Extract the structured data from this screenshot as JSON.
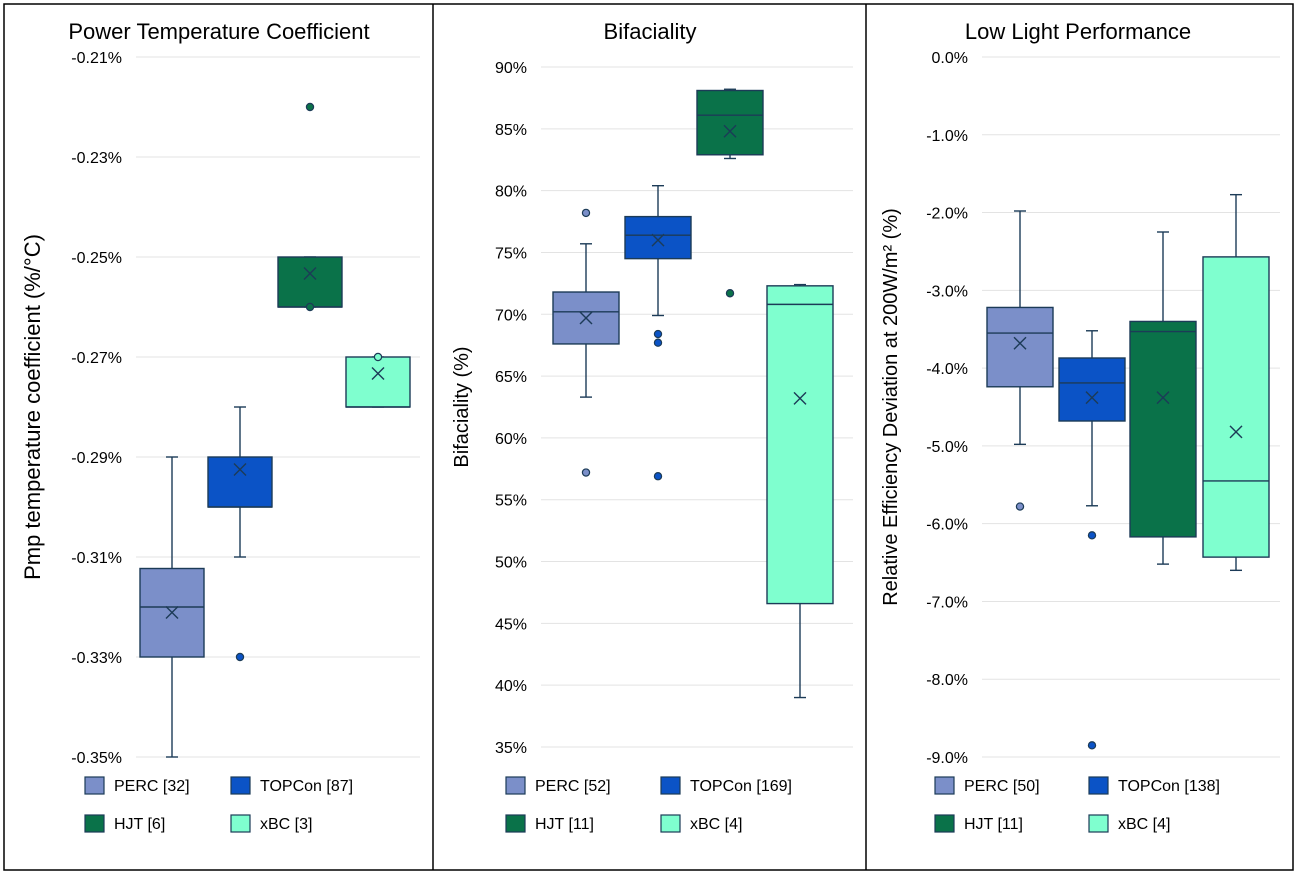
{
  "chart_data": [
    {
      "type": "box",
      "title": "Power Temperature Coefficient",
      "ylabel": "Pmp temperature coefficient (%/°C)",
      "ylim": [
        -0.35,
        -0.21
      ],
      "yticks": [
        -0.21,
        -0.23,
        -0.25,
        -0.27,
        -0.29,
        -0.31,
        -0.33,
        -0.35
      ],
      "ytick_labels": [
        "-0.21%",
        "-0.23%",
        "-0.25%",
        "-0.27%",
        "-0.29%",
        "-0.31%",
        "-0.33%",
        "-0.35%"
      ],
      "grid": true,
      "legend": "bottom",
      "series": [
        {
          "name": "PERC [32]",
          "color": "#7b8fc9",
          "box": {
            "whisker_low": -0.35,
            "q1": -0.33,
            "median": -0.32,
            "q3": -0.3123,
            "whisker_high": -0.29,
            "mean": -0.3211
          },
          "outliers": []
        },
        {
          "name": "TOPCon [87]",
          "color": "#0b53c6",
          "box": {
            "whisker_low": -0.31,
            "q1": -0.3,
            "median": -0.3,
            "q3": -0.29,
            "whisker_high": -0.28,
            "mean": -0.2925
          },
          "outliers": [
            -0.33
          ]
        },
        {
          "name": "HJT [6]",
          "color": "#0a7249",
          "box": {
            "whisker_low": -0.26,
            "q1": -0.26,
            "median": -0.26,
            "q3": -0.25,
            "whisker_high": -0.25,
            "mean": -0.2533
          },
          "outliers": [
            -0.22,
            -0.26
          ]
        },
        {
          "name": "xBC [3]",
          "color": "#7fffcf",
          "box": {
            "whisker_low": -0.28,
            "q1": -0.28,
            "median": -0.28,
            "q3": -0.27,
            "whisker_high": -0.27,
            "mean": -0.2733
          },
          "outliers": [
            -0.27
          ]
        }
      ]
    },
    {
      "type": "box",
      "title": "Bifaciality",
      "ylabel": "Bifaciality (%)",
      "ylim": [
        35,
        90
      ],
      "yticks": [
        90,
        85,
        80,
        75,
        70,
        65,
        60,
        55,
        50,
        45,
        40,
        35
      ],
      "ytick_labels": [
        "90%",
        "85%",
        "80%",
        "75%",
        "70%",
        "65%",
        "60%",
        "55%",
        "50%",
        "45%",
        "40%",
        "35%"
      ],
      "grid": true,
      "legend": "bottom",
      "series": [
        {
          "name": "PERC [52]",
          "color": "#7b8fc9",
          "box": {
            "whisker_low": 63.3,
            "q1": 67.6,
            "median": 70.2,
            "q3": 71.8,
            "whisker_high": 75.7,
            "mean": 69.7
          },
          "outliers": [
            78.2,
            57.2
          ]
        },
        {
          "name": "TOPCon [169]",
          "color": "#0b53c6",
          "box": {
            "whisker_low": 69.9,
            "q1": 74.5,
            "median": 76.4,
            "q3": 77.9,
            "whisker_high": 80.4,
            "mean": 76.0
          },
          "outliers": [
            68.4,
            67.7,
            56.9
          ]
        },
        {
          "name": "HJT [11]",
          "color": "#0a7249",
          "box": {
            "whisker_low": 82.6,
            "q1": 82.9,
            "median": 86.1,
            "q3": 88.1,
            "whisker_high": 88.2,
            "mean": 84.8
          },
          "outliers": [
            71.7
          ]
        },
        {
          "name": "xBC [4]",
          "color": "#7fffcf",
          "box": {
            "whisker_low": 39.0,
            "q1": 46.6,
            "median": 70.8,
            "q3": 72.3,
            "whisker_high": 72.4,
            "mean": 63.2
          },
          "outliers": []
        }
      ]
    },
    {
      "type": "box",
      "title": "Low Light Performance",
      "ylabel": "Relative Efficiency Deviation at 200W/m² (%)",
      "ylim": [
        -9.0,
        0.0
      ],
      "yticks": [
        0,
        -1,
        -2,
        -3,
        -4,
        -5,
        -6,
        -7,
        -8,
        -9
      ],
      "ytick_labels": [
        "0.0%",
        "-1.0%",
        "-2.0%",
        "-3.0%",
        "-4.0%",
        "-5.0%",
        "-6.0%",
        "-7.0%",
        "-8.0%",
        "-9.0%"
      ],
      "grid": true,
      "legend": "bottom",
      "series": [
        {
          "name": "PERC [50]",
          "color": "#7b8fc9",
          "box": {
            "whisker_low": -4.98,
            "q1": -4.24,
            "median": -3.55,
            "q3": -3.22,
            "whisker_high": -1.98,
            "mean": -3.68
          },
          "outliers": [
            -5.78
          ]
        },
        {
          "name": "TOPCon [138]",
          "color": "#0b53c6",
          "box": {
            "whisker_low": -5.77,
            "q1": -4.68,
            "median": -4.19,
            "q3": -3.87,
            "whisker_high": -3.52,
            "mean": -4.38
          },
          "outliers": [
            -6.15,
            -8.85
          ]
        },
        {
          "name": "HJT [11]",
          "color": "#0a7249",
          "box": {
            "whisker_low": -6.52,
            "q1": -6.17,
            "median": -3.53,
            "q3": -3.4,
            "whisker_high": -2.25,
            "mean": -4.38
          },
          "outliers": []
        },
        {
          "name": "xBC [4]",
          "color": "#7fffcf",
          "box": {
            "whisker_low": -6.6,
            "q1": -6.43,
            "median": -5.45,
            "q3": -2.57,
            "whisker_high": -1.77,
            "mean": -4.82
          },
          "outliers": []
        }
      ]
    }
  ]
}
